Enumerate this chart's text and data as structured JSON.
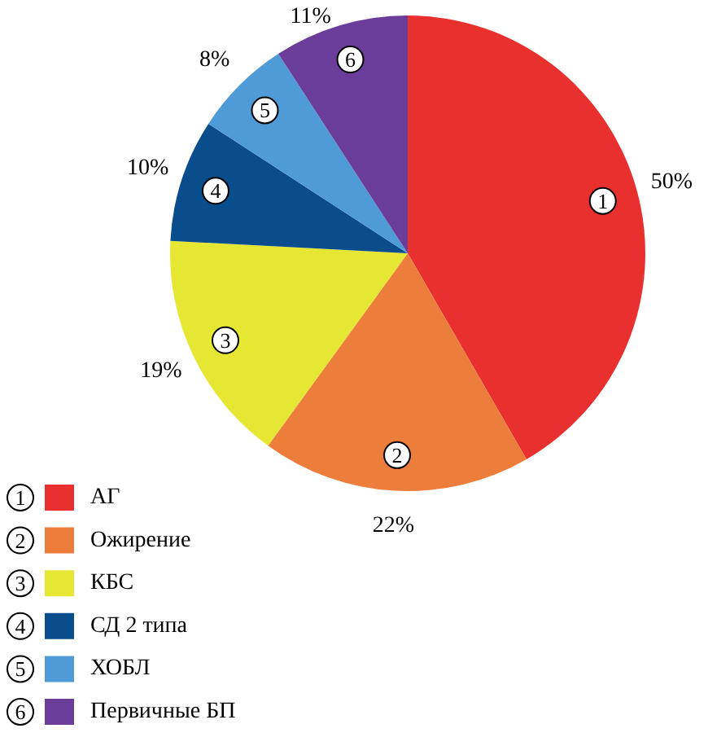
{
  "chart_data": {
    "type": "pie",
    "categories": [
      "АГ",
      "Ожирение",
      "КБС",
      "СД 2 типа",
      "ХОБЛ",
      "Первичные БП"
    ],
    "values": [
      50,
      22,
      19,
      10,
      8,
      11
    ],
    "colors": [
      "#e8312f",
      "#ed7d3a",
      "#e5e733",
      "#0a4d8c",
      "#4f9bd8",
      "#6a3d9a"
    ],
    "value_labels": [
      "50%",
      "22%",
      "19%",
      "10%",
      "8%",
      "11%"
    ],
    "annotations": [
      "1",
      "2",
      "3",
      "4",
      "5",
      "6"
    ],
    "legend": "bottom"
  }
}
